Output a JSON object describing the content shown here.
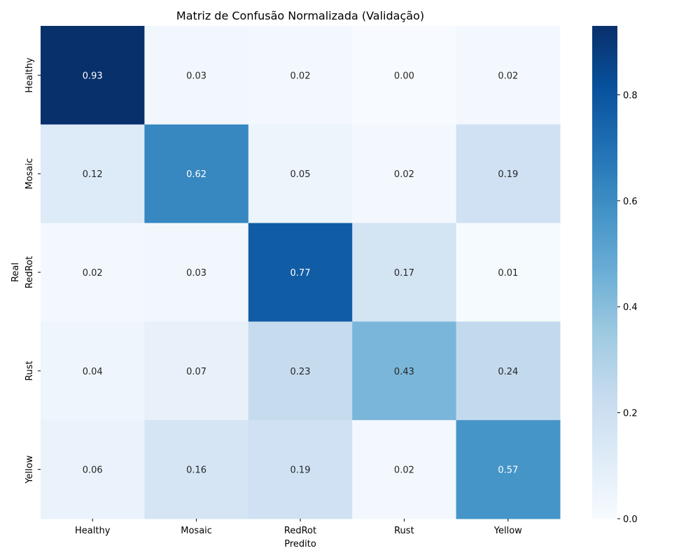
{
  "chart_data": {
    "type": "heatmap",
    "title": "Matriz de Confusão Normalizada (Validação)",
    "xlabel": "Predito",
    "ylabel": "Real",
    "x_categories": [
      "Healthy",
      "Mosaic",
      "RedRot",
      "Rust",
      "Yellow"
    ],
    "y_categories": [
      "Healthy",
      "Mosaic",
      "RedRot",
      "Rust",
      "Yellow"
    ],
    "values": [
      [
        0.93,
        0.03,
        0.02,
        0.0,
        0.02
      ],
      [
        0.12,
        0.62,
        0.05,
        0.02,
        0.19
      ],
      [
        0.02,
        0.03,
        0.77,
        0.17,
        0.01
      ],
      [
        0.04,
        0.07,
        0.23,
        0.43,
        0.24
      ],
      [
        0.06,
        0.16,
        0.19,
        0.02,
        0.57
      ]
    ],
    "colorscale": "Blues",
    "colorbar_range": [
      0,
      0.93
    ],
    "colorbar_ticks": [
      "0.0",
      "0.2",
      "0.4",
      "0.6",
      "0.8"
    ]
  }
}
